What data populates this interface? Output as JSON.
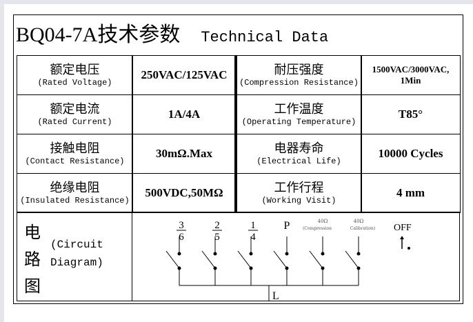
{
  "title": {
    "model": "BQ04-7A技术参数",
    "en": "Technical Data"
  },
  "rows": [
    {
      "l_zh": "额定电压",
      "l_en": "(Rated Voltage)",
      "l_val": "250VAC/125VAC",
      "r_zh": "耐压强度",
      "r_en": "(Compression Resistance)",
      "r_val": "1500VAC/3000VAC,",
      "r_val2": "1Min"
    },
    {
      "l_zh": "额定电流",
      "l_en": "(Rated Current)",
      "l_val": "1A/4A",
      "r_zh": "工作温度",
      "r_en": "(Operating Temperature)",
      "r_val": "T85°",
      "r_val2": ""
    },
    {
      "l_zh": "接触电阻",
      "l_en": "(Contact Resistance)",
      "l_val": "30mΩ.Max",
      "r_zh": "电器寿命",
      "r_en": "(Electrical Life)",
      "r_val": "10000 Cycles",
      "r_val2": ""
    },
    {
      "l_zh": "绝缘电阻",
      "l_en": "(Insulated Resistance)",
      "l_val": "500VDC,50MΩ",
      "r_zh": "工作行程",
      "r_en": "(Working Visit)",
      "r_val": "4 mm",
      "r_val2": ""
    }
  ],
  "circuit": {
    "zh": [
      "电",
      "路",
      "图"
    ],
    "en1": "(Circuit",
    "en2": "Diagram)",
    "labels": [
      {
        "top": "3",
        "bottom": "6"
      },
      {
        "top": "2",
        "bottom": "5"
      },
      {
        "top": "1",
        "bottom": "4"
      },
      {
        "top": "P",
        "bottom": ""
      },
      {
        "top": "40Ω",
        "bottom": "(Compression"
      },
      {
        "top": "40Ω",
        "bottom": "Calibration)"
      }
    ],
    "off": "OFF",
    "common": "L"
  }
}
